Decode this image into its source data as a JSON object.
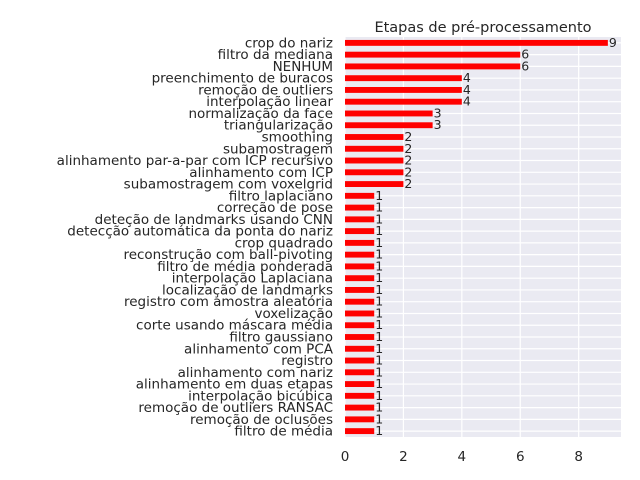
{
  "chart_data": {
    "type": "bar",
    "orientation": "horizontal",
    "title": "Etapas de pré-processamento",
    "xlabel": "",
    "ylabel": "",
    "xlim": [
      0,
      9.45
    ],
    "xticks": [
      0,
      2,
      4,
      6,
      8
    ],
    "grid": true,
    "bar_color": "#ff0000",
    "background_color": "#eaeaf2",
    "categories": [
      "crop do nariz",
      "filtro da mediana",
      "NENHUM",
      "preenchimento de buracos",
      "remoção de outliers",
      "interpolação linear",
      "normalização da face",
      "triangularização",
      "smoothing",
      "subamostragem",
      "alinhamento par-a-par com ICP recursivo",
      "alinhamento com ICP",
      "subamostragem com voxelgrid",
      "filtro laplaciano",
      "correção de pose",
      "deteção de landmarks usando CNN",
      "detecção automática da ponta do nariz",
      "crop quadrado",
      "reconstrução com ball-pivoting",
      "filtro de média ponderada",
      "interpolação Laplaciana",
      "localização de landmarks",
      "registro com amostra aleatória",
      "voxelização",
      "corte usando máscara média",
      "filtro gaussiano",
      "alinhamento com PCA",
      "registro",
      "alinhamento com nariz",
      "alinhamento em duas etapas",
      "interpolação bicúbica",
      "remoção de outliers RANSAC",
      "remoção de oclusões",
      "filtro de média"
    ],
    "values": [
      9,
      6,
      6,
      4,
      4,
      4,
      3,
      3,
      2,
      2,
      2,
      2,
      2,
      1,
      1,
      1,
      1,
      1,
      1,
      1,
      1,
      1,
      1,
      1,
      1,
      1,
      1,
      1,
      1,
      1,
      1,
      1,
      1,
      1
    ]
  }
}
